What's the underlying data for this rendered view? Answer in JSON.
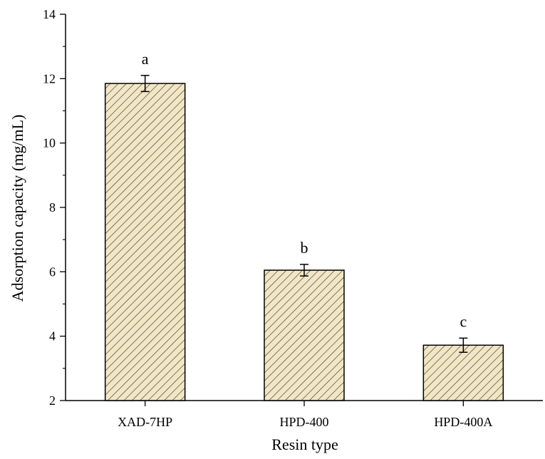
{
  "chart_data": {
    "type": "bar",
    "xlabel": "Resin type",
    "ylabel": "Adsorption capacity (mg/mL)",
    "ylim": [
      2,
      14
    ],
    "yticks": [
      2,
      4,
      6,
      8,
      10,
      12,
      14
    ],
    "categories": [
      "XAD-7HP",
      "HPD-400",
      "HPD-400A"
    ],
    "values": [
      11.85,
      6.05,
      3.72
    ],
    "errors": [
      0.25,
      0.18,
      0.22
    ],
    "significance": [
      "a",
      "b",
      "c"
    ],
    "bar_fill": "#f2e6c4",
    "hatch_color": "#3a3a3a",
    "grid": false
  }
}
